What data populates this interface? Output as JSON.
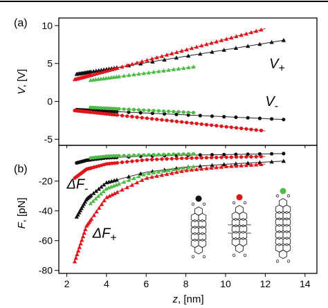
{
  "figure": {
    "panels": [
      "(a)",
      "(b)"
    ],
    "xlabel_prefix": "z",
    "xlabel_unit": ", [nm]",
    "ylabel_a_prefix": "V",
    "ylabel_a_unit": ", [V]",
    "ylabel_b_prefix": "F",
    "ylabel_b_unit": ", [pN]"
  },
  "colors": {
    "black": "#111111",
    "red": "#e0151b",
    "green": "#4dbb45"
  },
  "chart_data": [
    {
      "type": "scatter",
      "panel": "(a)",
      "xlabel": "z, [nm]",
      "ylabel": "V, [V]",
      "xlim": [
        1.6,
        14.6
      ],
      "ylim": [
        -5.8,
        11
      ],
      "xticks": [
        2,
        4,
        6,
        8,
        10,
        12,
        14
      ],
      "yticks": [
        -5,
        0,
        5,
        10
      ],
      "annotations": [
        {
          "base": "V",
          "sub": "+",
          "x": 12.2,
          "y": 4.4
        },
        {
          "base": "V",
          "sub": "-",
          "x": 12.0,
          "y": -0.6
        }
      ],
      "series": [
        {
          "color": "black",
          "marker": "circle",
          "part": "V-",
          "x": [
            2.5,
            13.0
          ],
          "y": [
            -1.1,
            -2.4
          ]
        },
        {
          "color": "black",
          "marker": "triangle",
          "part": "V+",
          "x": [
            2.5,
            13.0
          ],
          "y": [
            3.6,
            8.1
          ]
        },
        {
          "color": "red",
          "marker": "circle",
          "part": "V-",
          "x": [
            2.4,
            12.0
          ],
          "y": [
            -1.2,
            -3.9
          ]
        },
        {
          "color": "red",
          "marker": "triangle",
          "part": "V+",
          "x": [
            2.4,
            12.0
          ],
          "y": [
            2.9,
            9.6
          ]
        },
        {
          "color": "green",
          "marker": "circle",
          "part": "V-",
          "x": [
            3.2,
            8.5
          ],
          "y": [
            -0.8,
            -1.5
          ]
        },
        {
          "color": "green",
          "marker": "triangle",
          "part": "V+",
          "x": [
            3.2,
            8.5
          ],
          "y": [
            2.8,
            4.6
          ]
        }
      ]
    },
    {
      "type": "scatter",
      "panel": "(b)",
      "xlabel": "z, [nm]",
      "ylabel": "F, [pN]",
      "xlim": [
        1.6,
        14.6
      ],
      "ylim": [
        -82,
        4
      ],
      "xticks": [
        2,
        4,
        6,
        8,
        10,
        12,
        14
      ],
      "yticks": [
        -80,
        -60,
        -40,
        -20
      ],
      "annotations": [
        {
          "base": "ΔF",
          "sub": "-",
          "x": 2.0,
          "y": -25
        },
        {
          "base": "ΔF",
          "sub": "+",
          "x": 3.3,
          "y": -58
        }
      ],
      "series": [
        {
          "color": "black",
          "marker": "circle",
          "part": "ΔF-",
          "x": [
            2.5,
            3,
            4,
            6,
            8,
            10,
            13
          ],
          "y": [
            -7.8,
            -6.0,
            -4.4,
            -3.2,
            -2.6,
            -2.2,
            -1.5
          ]
        },
        {
          "color": "black",
          "marker": "triangle",
          "part": "ΔF+",
          "x": [
            2.5,
            3,
            4,
            6,
            8,
            10,
            13
          ],
          "y": [
            -44,
            -32,
            -21,
            -14,
            -10.6,
            -8.7,
            -6.5
          ]
        },
        {
          "color": "red",
          "marker": "circle",
          "part": "ΔF-",
          "x": [
            2.4,
            3,
            4,
            6,
            8,
            10,
            12
          ],
          "y": [
            -18,
            -12,
            -8.5,
            -5.7,
            -4.6,
            -4.0,
            -3.5
          ]
        },
        {
          "color": "red",
          "marker": "triangle",
          "part": "ΔF+",
          "x": [
            2.4,
            3,
            4,
            6,
            8,
            10,
            12
          ],
          "y": [
            -74,
            -50,
            -31,
            -18,
            -12.8,
            -10.2,
            -8.6
          ]
        },
        {
          "color": "green",
          "marker": "circle",
          "part": "ΔF-",
          "x": [
            3.2,
            4,
            6,
            8.5
          ],
          "y": [
            -4.5,
            -3.3,
            -2.4,
            -1.7
          ]
        },
        {
          "color": "green",
          "marker": "triangle",
          "part": "ΔF+",
          "x": [
            3.2,
            4,
            6,
            8.5
          ],
          "y": [
            -35,
            -25,
            -15,
            -10
          ]
        }
      ]
    }
  ]
}
